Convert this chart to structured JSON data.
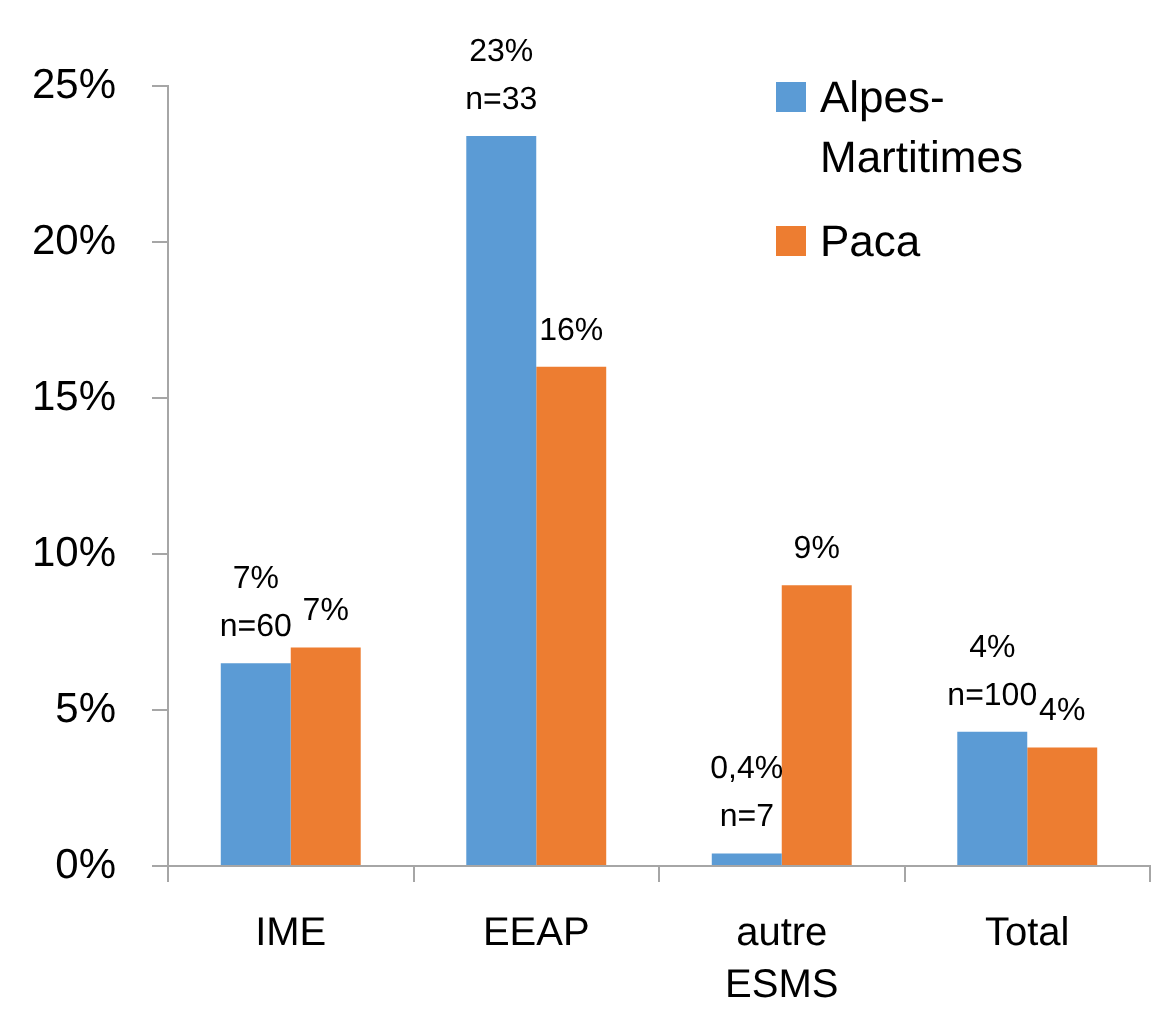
{
  "chart_data": {
    "type": "bar",
    "categories": [
      "IME",
      "EEAP",
      "autre ESMS",
      "Total"
    ],
    "series": [
      {
        "name": "Alpes-Martitimes",
        "color": "#5b9bd5",
        "values": [
          6.5,
          23.4,
          0.4,
          4.3
        ],
        "value_labels": [
          "7%\nn=60",
          "23%\nn=33",
          "0,4%\nn=7",
          "4%\nn=100"
        ]
      },
      {
        "name": "Paca",
        "color": "#ed7d31",
        "values": [
          7,
          16,
          9,
          3.8
        ],
        "value_labels": [
          "7%",
          "16%",
          "9%",
          "4%"
        ]
      }
    ],
    "ylim": [
      0,
      25
    ],
    "yticks": [
      {
        "value": 0,
        "label": "0%"
      },
      {
        "value": 5,
        "label": "5%"
      },
      {
        "value": 10,
        "label": "10%"
      },
      {
        "value": 15,
        "label": "15%"
      },
      {
        "value": 20,
        "label": "20%"
      },
      {
        "value": 25,
        "label": "25%"
      }
    ],
    "grid": false,
    "legend": "top right"
  }
}
